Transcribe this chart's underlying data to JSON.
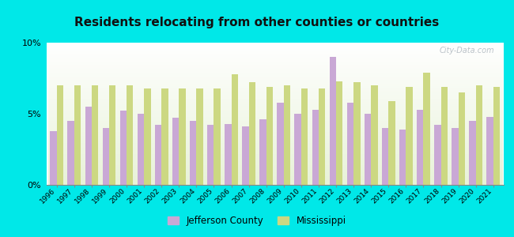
{
  "title": "Residents relocating from other counties or countries",
  "years": [
    1996,
    1997,
    1998,
    1999,
    2000,
    2001,
    2002,
    2003,
    2004,
    2005,
    2006,
    2007,
    2008,
    2009,
    2010,
    2011,
    2012,
    2013,
    2014,
    2015,
    2016,
    2017,
    2018,
    2019,
    2020,
    2021
  ],
  "jefferson": [
    3.8,
    4.5,
    5.5,
    4.0,
    5.2,
    5.0,
    4.2,
    4.7,
    4.5,
    4.2,
    4.3,
    4.1,
    4.6,
    5.8,
    5.0,
    5.3,
    9.0,
    5.8,
    5.0,
    4.0,
    3.9,
    5.3,
    4.2,
    4.0,
    4.5,
    4.8
  ],
  "mississippi": [
    7.0,
    7.0,
    7.0,
    7.0,
    7.0,
    6.8,
    6.8,
    6.8,
    6.8,
    6.8,
    7.8,
    7.2,
    6.9,
    7.0,
    6.8,
    6.8,
    7.3,
    7.2,
    7.0,
    5.9,
    6.9,
    7.9,
    6.9,
    6.5,
    7.0,
    6.9
  ],
  "jefferson_color": "#c9a8d5",
  "mississippi_color": "#ccd882",
  "outer_background": "#00e8e8",
  "title_fontsize": 11,
  "ylim": [
    0,
    10
  ],
  "yticks": [
    0,
    5,
    10
  ],
  "ytick_labels": [
    "0%",
    "5%",
    "10%"
  ],
  "legend_jefferson": "Jefferson County",
  "legend_mississippi": "Mississippi",
  "watermark": "City-Data.com"
}
